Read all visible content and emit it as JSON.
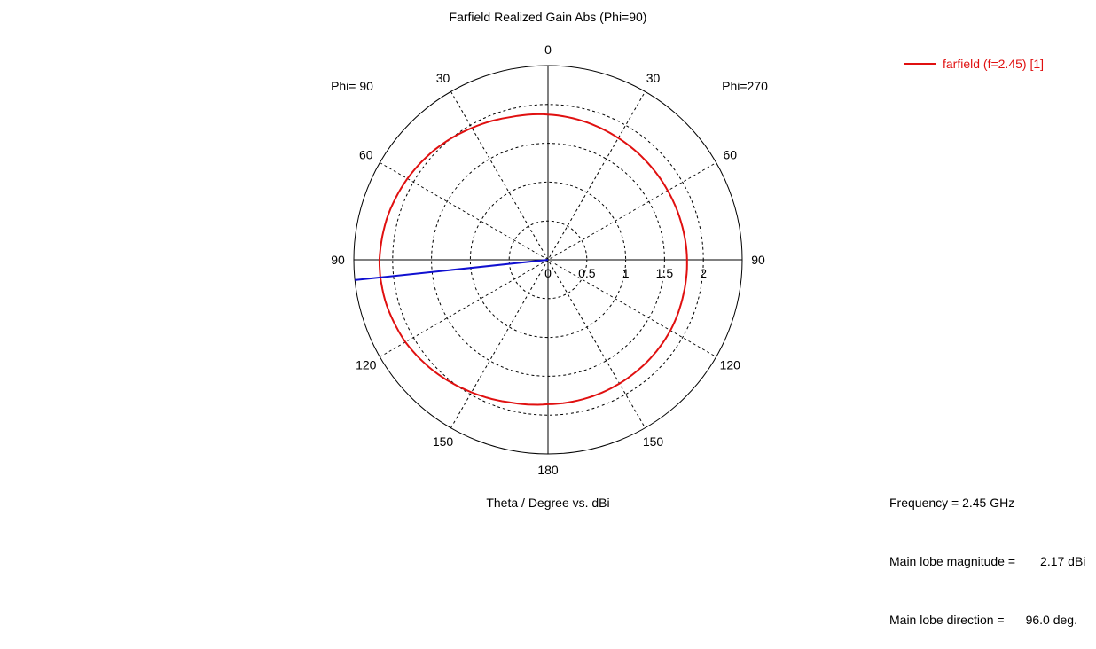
{
  "chart_data": {
    "type": "polar-line",
    "title": "Farfield Realized Gain Abs (Phi=90)",
    "xlabel": "Theta / Degree vs. dBi",
    "left_side_label": "Phi= 90",
    "right_side_label": "Phi=270",
    "angle_tick_labels_left": [
      "0",
      "30",
      "60",
      "90",
      "120",
      "150",
      "180"
    ],
    "angle_tick_labels_right": [
      "30",
      "60",
      "90",
      "120",
      "150"
    ],
    "angle_ticks_deg": [
      0,
      30,
      60,
      90,
      120,
      150,
      180
    ],
    "radial_tick_labels": [
      "0",
      "0.5",
      "1",
      "1.5",
      "2"
    ],
    "radial_ticks": [
      0,
      0.5,
      1,
      1.5,
      2
    ],
    "rlim": [
      0,
      2.5
    ],
    "grid": true,
    "legend_position": "top-right",
    "series": [
      {
        "name": "farfield (f=2.45) [1]",
        "color": "#e01010",
        "theta_deg": [
          0,
          15,
          30,
          45,
          60,
          75,
          90,
          96,
          105,
          120,
          135,
          150,
          165,
          180,
          195,
          210,
          225,
          240,
          255,
          270,
          285,
          300,
          315,
          330,
          345,
          360
        ],
        "gain_dbi": [
          1.87,
          1.9,
          1.96,
          2.03,
          2.09,
          2.14,
          2.17,
          2.17,
          2.16,
          2.12,
          2.05,
          1.97,
          1.9,
          1.86,
          1.85,
          1.84,
          1.83,
          1.82,
          1.8,
          1.79,
          1.78,
          1.78,
          1.79,
          1.81,
          1.84,
          1.87
        ]
      }
    ],
    "main_lobe_marker": {
      "theta_deg": 96.0,
      "color": "#1010d0"
    }
  },
  "info": {
    "frequency_label": "Frequency = 2.45 GHz",
    "magnitude_label": "Main lobe magnitude =",
    "magnitude_value": "2.17 dBi",
    "direction_label": "Main lobe direction =",
    "direction_value": "96.0 deg."
  }
}
